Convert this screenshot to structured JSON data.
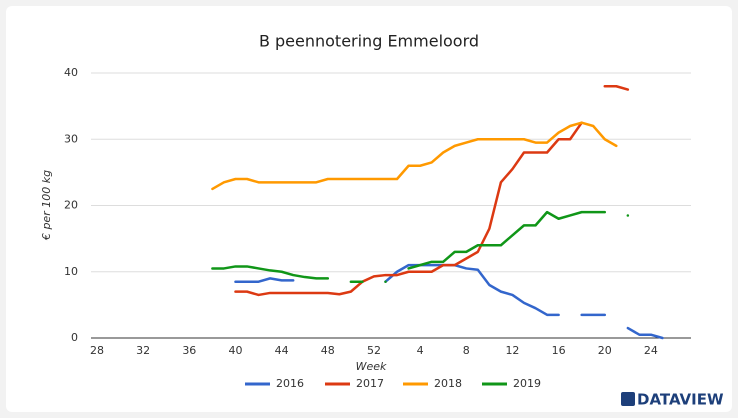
{
  "chart_data": {
    "type": "line",
    "title": "B peennotering Emmeloord",
    "x_label": "Week",
    "y_label": "€ per 100 kg",
    "brand": "DATAVIEW",
    "categories": [
      "28",
      null,
      null,
      null,
      "32",
      null,
      null,
      null,
      "36",
      null,
      null,
      null,
      "40",
      null,
      null,
      null,
      "44",
      null,
      null,
      null,
      "48",
      null,
      null,
      null,
      "52",
      null,
      null,
      null,
      "4",
      null,
      null,
      null,
      "8",
      null,
      null,
      null,
      "12",
      null,
      null,
      null,
      "16",
      null,
      null,
      null,
      "20",
      null,
      null,
      null,
      "24",
      null
    ],
    "ylim": [
      0,
      40
    ],
    "yticks": [
      0,
      10,
      20,
      30,
      40
    ],
    "grid": true,
    "legend": "bottom",
    "series": [
      {
        "name": "2016",
        "color": "#3366cc",
        "values": [
          null,
          null,
          null,
          null,
          null,
          null,
          null,
          null,
          null,
          null,
          null,
          null,
          8.5,
          8.5,
          8.5,
          9,
          8.7,
          8.7,
          null,
          null,
          null,
          null,
          null,
          null,
          null,
          8.5,
          10,
          11,
          11,
          11,
          11,
          11,
          10.5,
          10.3,
          8,
          7,
          6.5,
          5.3,
          4.5,
          3.5,
          3.5,
          null,
          3.5,
          3.5,
          3.5,
          null,
          1.5,
          0.5,
          0.5,
          0
        ]
      },
      {
        "name": "2017",
        "color": "#dc3912",
        "values": [
          null,
          null,
          null,
          null,
          null,
          null,
          null,
          null,
          null,
          null,
          null,
          null,
          7,
          7,
          6.5,
          6.8,
          6.8,
          6.8,
          6.8,
          6.8,
          6.8,
          6.6,
          7,
          8.5,
          9.3,
          9.5,
          9.5,
          10,
          10,
          10,
          11,
          11,
          12,
          13,
          16.5,
          23.5,
          25.5,
          28,
          28,
          28,
          30,
          30,
          32.5,
          null,
          38,
          38,
          37.5,
          null,
          null,
          null
        ]
      },
      {
        "name": "2018",
        "color": "#ff9900",
        "values": [
          null,
          null,
          null,
          null,
          null,
          null,
          null,
          null,
          null,
          null,
          22.5,
          23.5,
          24,
          24,
          23.5,
          23.5,
          23.5,
          23.5,
          23.5,
          23.5,
          24,
          24,
          24,
          24,
          24,
          24,
          24,
          26,
          26,
          26.5,
          28,
          29,
          29.5,
          30,
          30,
          30,
          30,
          30,
          29.5,
          29.5,
          31,
          32,
          32.5,
          32,
          30,
          29,
          null,
          null,
          null,
          null
        ]
      },
      {
        "name": "2019",
        "color": "#109618",
        "values": [
          null,
          null,
          null,
          null,
          null,
          null,
          null,
          null,
          null,
          null,
          10.5,
          10.5,
          10.8,
          10.8,
          10.5,
          10.2,
          10,
          9.5,
          9.2,
          9,
          9,
          null,
          8.5,
          8.5,
          null,
          8.5,
          null,
          10.5,
          11,
          11.5,
          11.5,
          13,
          13,
          14,
          14,
          14,
          15.5,
          17,
          17,
          19,
          18,
          18.5,
          19,
          19,
          19,
          null,
          18.5,
          null,
          null,
          null
        ]
      }
    ]
  }
}
